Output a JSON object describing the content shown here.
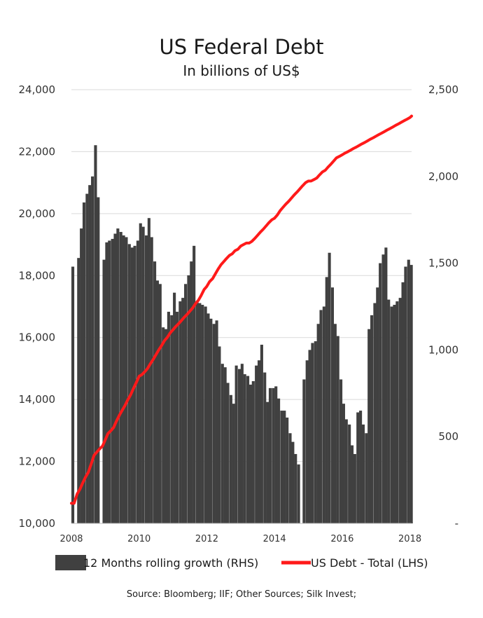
{
  "chart_data": {
    "type": "bar+line",
    "title": "US Federal Debt",
    "subtitle": "In billions of US$",
    "source": "Source: Bloomberg; IIF; Other Sources; Silk Invest;",
    "x_ticks": [
      "2008",
      "2010",
      "2012",
      "2014",
      "2016",
      "2018"
    ],
    "x_range": [
      2008.0,
      2018.05
    ],
    "y_left": {
      "ylim": [
        10000,
        24000
      ],
      "ticks": [
        "10,000",
        "12,000",
        "14,000",
        "16,000",
        "18,000",
        "20,000",
        "22,000",
        "24,000"
      ]
    },
    "y_right": {
      "ylim": [
        0,
        2500
      ],
      "ticks": [
        "-",
        "500",
        "1,000",
        "1,500",
        "2,000",
        "2,500"
      ]
    },
    "gridlines": true,
    "legend_position": "bottom",
    "series": [
      {
        "name": "12 Months rolling growth (RHS)",
        "kind": "bar",
        "axis": "right",
        "color": "#404040",
        "points": [
          [
            2008.0,
            1480
          ],
          [
            2008.17,
            1530
          ],
          [
            2008.25,
            1700
          ],
          [
            2008.33,
            1850
          ],
          [
            2008.42,
            1900
          ],
          [
            2008.5,
            1950
          ],
          [
            2008.58,
            2000
          ],
          [
            2008.67,
            2180
          ],
          [
            2008.75,
            1880
          ],
          [
            2008.92,
            1520
          ],
          [
            2009.0,
            1620
          ],
          [
            2009.08,
            1630
          ],
          [
            2009.17,
            1640
          ],
          [
            2009.25,
            1670
          ],
          [
            2009.33,
            1700
          ],
          [
            2009.42,
            1680
          ],
          [
            2009.5,
            1660
          ],
          [
            2009.58,
            1650
          ],
          [
            2009.67,
            1610
          ],
          [
            2009.75,
            1590
          ],
          [
            2009.83,
            1600
          ],
          [
            2009.92,
            1630
          ],
          [
            2010.0,
            1730
          ],
          [
            2010.08,
            1710
          ],
          [
            2010.17,
            1660
          ],
          [
            2010.25,
            1760
          ],
          [
            2010.33,
            1650
          ],
          [
            2010.42,
            1510
          ],
          [
            2010.5,
            1400
          ],
          [
            2010.58,
            1380
          ],
          [
            2010.67,
            1130
          ],
          [
            2010.75,
            1120
          ],
          [
            2010.83,
            1220
          ],
          [
            2010.92,
            1200
          ],
          [
            2011.0,
            1330
          ],
          [
            2011.08,
            1220
          ],
          [
            2011.17,
            1280
          ],
          [
            2011.25,
            1300
          ],
          [
            2011.33,
            1380
          ],
          [
            2011.42,
            1430
          ],
          [
            2011.5,
            1510
          ],
          [
            2011.58,
            1600
          ],
          [
            2011.67,
            1280
          ],
          [
            2011.75,
            1270
          ],
          [
            2011.83,
            1260
          ],
          [
            2011.92,
            1250
          ],
          [
            2012.0,
            1210
          ],
          [
            2012.08,
            1180
          ],
          [
            2012.17,
            1150
          ],
          [
            2012.25,
            1170
          ],
          [
            2012.33,
            1020
          ],
          [
            2012.42,
            920
          ],
          [
            2012.5,
            900
          ],
          [
            2012.58,
            810
          ],
          [
            2012.67,
            740
          ],
          [
            2012.75,
            690
          ],
          [
            2012.83,
            910
          ],
          [
            2012.92,
            890
          ],
          [
            2013.0,
            920
          ],
          [
            2013.08,
            860
          ],
          [
            2013.17,
            850
          ],
          [
            2013.25,
            800
          ],
          [
            2013.33,
            820
          ],
          [
            2013.42,
            910
          ],
          [
            2013.5,
            940
          ],
          [
            2013.58,
            1030
          ],
          [
            2013.67,
            870
          ],
          [
            2013.75,
            700
          ],
          [
            2013.83,
            780
          ],
          [
            2013.92,
            780
          ],
          [
            2014.0,
            790
          ],
          [
            2014.08,
            720
          ],
          [
            2014.17,
            650
          ],
          [
            2014.25,
            650
          ],
          [
            2014.33,
            610
          ],
          [
            2014.42,
            520
          ],
          [
            2014.5,
            470
          ],
          [
            2014.58,
            400
          ],
          [
            2014.67,
            340
          ],
          [
            2014.83,
            830
          ],
          [
            2014.92,
            940
          ],
          [
            2015.0,
            1000
          ],
          [
            2015.08,
            1040
          ],
          [
            2015.17,
            1050
          ],
          [
            2015.25,
            1150
          ],
          [
            2015.33,
            1230
          ],
          [
            2015.42,
            1250
          ],
          [
            2015.5,
            1420
          ],
          [
            2015.58,
            1560
          ],
          [
            2015.67,
            1360
          ],
          [
            2015.75,
            1150
          ],
          [
            2015.83,
            1080
          ],
          [
            2015.92,
            830
          ],
          [
            2016.0,
            690
          ],
          [
            2016.08,
            600
          ],
          [
            2016.17,
            570
          ],
          [
            2016.25,
            450
          ],
          [
            2016.33,
            400
          ],
          [
            2016.42,
            640
          ],
          [
            2016.5,
            650
          ],
          [
            2016.58,
            570
          ],
          [
            2016.67,
            520
          ],
          [
            2016.75,
            1120
          ],
          [
            2016.83,
            1200
          ],
          [
            2016.92,
            1270
          ],
          [
            2017.0,
            1360
          ],
          [
            2017.08,
            1500
          ],
          [
            2017.17,
            1550
          ],
          [
            2017.25,
            1590
          ],
          [
            2017.33,
            1290
          ],
          [
            2017.42,
            1250
          ],
          [
            2017.5,
            1260
          ],
          [
            2017.58,
            1280
          ],
          [
            2017.67,
            1300
          ],
          [
            2017.75,
            1390
          ],
          [
            2017.83,
            1480
          ],
          [
            2017.92,
            1520
          ],
          [
            2018.0,
            1490
          ]
        ]
      },
      {
        "name": "US Debt - Total (LHS)",
        "kind": "line",
        "axis": "left",
        "color": "#ff1a1a",
        "points": [
          [
            2008.0,
            10650
          ],
          [
            2008.08,
            10650
          ],
          [
            2008.17,
            10950
          ],
          [
            2008.25,
            11100
          ],
          [
            2008.33,
            11300
          ],
          [
            2008.42,
            11500
          ],
          [
            2008.5,
            11650
          ],
          [
            2008.58,
            11900
          ],
          [
            2008.67,
            12200
          ],
          [
            2008.75,
            12300
          ],
          [
            2008.83,
            12400
          ],
          [
            2008.92,
            12500
          ],
          [
            2009.0,
            12700
          ],
          [
            2009.08,
            12900
          ],
          [
            2009.17,
            13000
          ],
          [
            2009.25,
            13100
          ],
          [
            2009.33,
            13300
          ],
          [
            2009.42,
            13500
          ],
          [
            2009.5,
            13650
          ],
          [
            2009.58,
            13800
          ],
          [
            2009.67,
            14000
          ],
          [
            2009.75,
            14150
          ],
          [
            2009.83,
            14350
          ],
          [
            2009.92,
            14550
          ],
          [
            2010.0,
            14750
          ],
          [
            2010.08,
            14800
          ],
          [
            2010.17,
            14900
          ],
          [
            2010.25,
            15000
          ],
          [
            2010.33,
            15150
          ],
          [
            2010.42,
            15300
          ],
          [
            2010.5,
            15450
          ],
          [
            2010.58,
            15600
          ],
          [
            2010.67,
            15750
          ],
          [
            2010.75,
            15900
          ],
          [
            2010.83,
            16000
          ],
          [
            2010.92,
            16150
          ],
          [
            2011.0,
            16250
          ],
          [
            2011.08,
            16350
          ],
          [
            2011.17,
            16450
          ],
          [
            2011.25,
            16550
          ],
          [
            2011.33,
            16650
          ],
          [
            2011.42,
            16750
          ],
          [
            2011.5,
            16850
          ],
          [
            2011.58,
            16950
          ],
          [
            2011.67,
            17100
          ],
          [
            2011.75,
            17200
          ],
          [
            2011.83,
            17350
          ],
          [
            2011.92,
            17550
          ],
          [
            2012.0,
            17650
          ],
          [
            2012.08,
            17800
          ],
          [
            2012.17,
            17900
          ],
          [
            2012.25,
            18050
          ],
          [
            2012.33,
            18200
          ],
          [
            2012.42,
            18350
          ],
          [
            2012.5,
            18450
          ],
          [
            2012.58,
            18550
          ],
          [
            2012.67,
            18650
          ],
          [
            2012.75,
            18700
          ],
          [
            2012.83,
            18800
          ],
          [
            2012.92,
            18850
          ],
          [
            2013.0,
            18950
          ],
          [
            2013.08,
            19000
          ],
          [
            2013.17,
            19050
          ],
          [
            2013.25,
            19050
          ],
          [
            2013.33,
            19100
          ],
          [
            2013.42,
            19200
          ],
          [
            2013.5,
            19300
          ],
          [
            2013.58,
            19400
          ],
          [
            2013.67,
            19500
          ],
          [
            2013.75,
            19600
          ],
          [
            2013.83,
            19700
          ],
          [
            2013.92,
            19800
          ],
          [
            2014.0,
            19850
          ],
          [
            2014.08,
            19950
          ],
          [
            2014.17,
            20100
          ],
          [
            2014.25,
            20200
          ],
          [
            2014.33,
            20300
          ],
          [
            2014.42,
            20400
          ],
          [
            2014.5,
            20500
          ],
          [
            2014.58,
            20600
          ],
          [
            2014.67,
            20700
          ],
          [
            2014.75,
            20800
          ],
          [
            2014.83,
            20900
          ],
          [
            2014.92,
            21000
          ],
          [
            2015.0,
            21050
          ],
          [
            2015.08,
            21050
          ],
          [
            2015.17,
            21100
          ],
          [
            2015.25,
            21150
          ],
          [
            2015.33,
            21250
          ],
          [
            2015.42,
            21350
          ],
          [
            2015.5,
            21400
          ],
          [
            2015.58,
            21500
          ],
          [
            2015.67,
            21600
          ],
          [
            2015.75,
            21700
          ],
          [
            2015.83,
            21800
          ],
          [
            2015.92,
            21850
          ],
          [
            2016.0,
            21900
          ],
          [
            2016.08,
            21950
          ],
          [
            2016.17,
            22000
          ],
          [
            2016.25,
            22050
          ],
          [
            2016.33,
            22100
          ],
          [
            2016.42,
            22150
          ],
          [
            2016.5,
            22200
          ],
          [
            2016.58,
            22250
          ],
          [
            2016.67,
            22300
          ],
          [
            2016.75,
            22350
          ],
          [
            2016.83,
            22400
          ],
          [
            2016.92,
            22450
          ],
          [
            2017.0,
            22500
          ],
          [
            2017.08,
            22550
          ],
          [
            2017.17,
            22600
          ],
          [
            2017.25,
            22650
          ],
          [
            2017.33,
            22700
          ],
          [
            2017.42,
            22750
          ],
          [
            2017.5,
            22800
          ],
          [
            2017.58,
            22850
          ],
          [
            2017.67,
            22900
          ],
          [
            2017.75,
            22950
          ],
          [
            2017.83,
            23000
          ],
          [
            2017.92,
            23050
          ],
          [
            2018.0,
            23100
          ],
          [
            2018.05,
            23150
          ]
        ]
      }
    ]
  }
}
